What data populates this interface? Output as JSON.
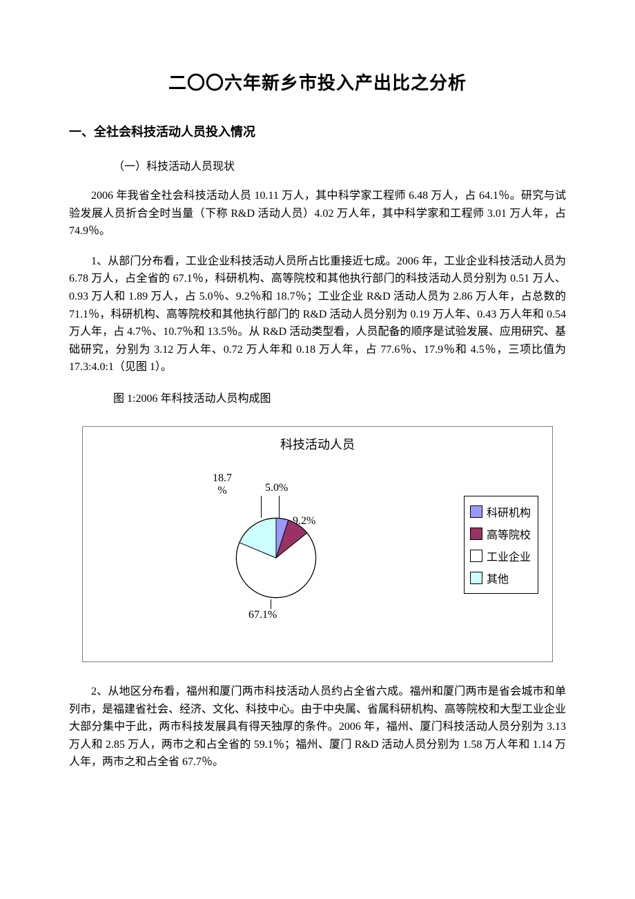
{
  "title": "二〇〇六年新乡市投入产出比之分析",
  "section1_heading": "一、全社会科技活动人员投入情况",
  "sub1_heading": "（一）科技活动人员现状",
  "para1": "2006 年我省全社会科技活动人员 10.11 万人，其中科学家工程师 6.48 万人，占 64.1％。研究与试验发展人员折合全时当量（下称 R&D 活动人员）4.02 万人年，其中科学家和工程师 3.01 万人年，占 74.9％。",
  "para2": "1、从部门分布看，工业企业科技活动人员所占比重接近七成。2006 年，工业企业科技活动人员为 6.78 万人，占全省的 67.1％，科研机构、高等院校和其他执行部门的科技活动人员分别为 0.51 万人、0.93 万人和 1.89 万人，占 5.0％、9.2％和 18.7％；工业企业 R&D 活动人员为 2.86 万人年，占总数的 71.1％，科研机构、高等院校和其他执行部门的 R&D 活动人员分别为 0.19 万人年、0.43 万人年和 0.54 万人年，占 4.7％、10.7％和 13.5％。从 R&D 活动类型看，人员配备的顺序是试验发展、应用研究、基础研究，分别为 3.12 万人年、0.72 万人年和 0.18 万人年，占 77.6％、17.9％和 4.5％，三项比值为 17.3:4.0:1（见图 1）。",
  "figure1_caption": "图 1:2006 年科技活动人员构成图",
  "chart": {
    "type": "pie",
    "title": "科技活动人员",
    "title_fontsize": 18,
    "background_color": "#ffffff",
    "border_color": "#808080",
    "slices": [
      {
        "label": "科研机构",
        "value": 5.0,
        "display": "5.0%",
        "color": "#9999ff"
      },
      {
        "label": "高等院校",
        "value": 9.2,
        "display": "9.2%",
        "color": "#993366"
      },
      {
        "label": "工业企业",
        "value": 67.1,
        "display": "67.1%",
        "color": "#ffffff"
      },
      {
        "label": "其他",
        "value": 18.7,
        "display": "18.7\n%",
        "color": "#ccffff"
      }
    ],
    "legend_border": "#000000",
    "label_fontsize": 16,
    "pie_outline": "#000000"
  },
  "para3": "2、从地区分布看，福州和厦门两市科技活动人员约占全省六成。福州和厦门两市是省会城市和单列市，是福建省社会、经济、文化、科技中心。由于中央属、省属科研机构、高等院校和大型工业企业大部分集中于此，两市科技发展具有得天独厚的条件。2006 年，福州、厦门科技活动人员分别为 3.13 万人和 2.85 万人，两市之和占全省的 59.1％；福州、厦门 R&D 活动人员分别为 1.58 万人年和 1.14 万人年，两市之和占全省 67.7％。"
}
